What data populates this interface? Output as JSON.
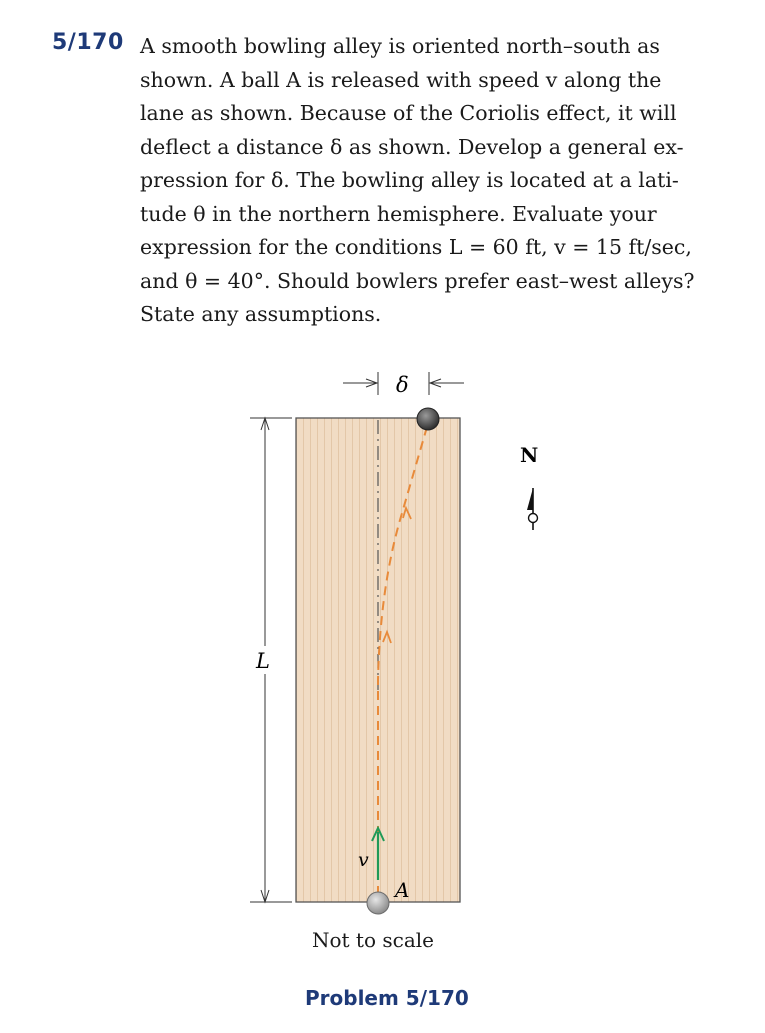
{
  "problem": {
    "number": "5/170",
    "text_lines": [
      "A smooth bowling alley is oriented north–south as",
      "shown. A ball A is released with speed v along the",
      "lane as shown. Because of the Coriolis effect, it will",
      "deflect a distance δ as shown. Develop a general ex-",
      "pression for δ. The bowling alley is located at a lati-",
      "tude θ in the northern hemisphere. Evaluate your",
      "expression for the conditions L = 60 ft, v = 15 ft/sec,",
      "and θ = 40°. Should bowlers prefer east–west alleys?",
      "State any assumptions."
    ]
  },
  "figure": {
    "delta_label": "δ",
    "length_label": "L",
    "velocity_label": "v",
    "ball_label": "A",
    "north_label": "N",
    "scale_note": "Not to scale",
    "caption": "Problem 5/170"
  },
  "colors": {
    "heading_blue": "#1e3a78",
    "lane_fill": "#f1dcc4",
    "lane_stripe": "#e6ccaf",
    "path_orange": "#e88a3a",
    "velocity_green": "#1f9a57",
    "ball_gray": "#9a9a9a",
    "ball_dark": "#555555"
  }
}
